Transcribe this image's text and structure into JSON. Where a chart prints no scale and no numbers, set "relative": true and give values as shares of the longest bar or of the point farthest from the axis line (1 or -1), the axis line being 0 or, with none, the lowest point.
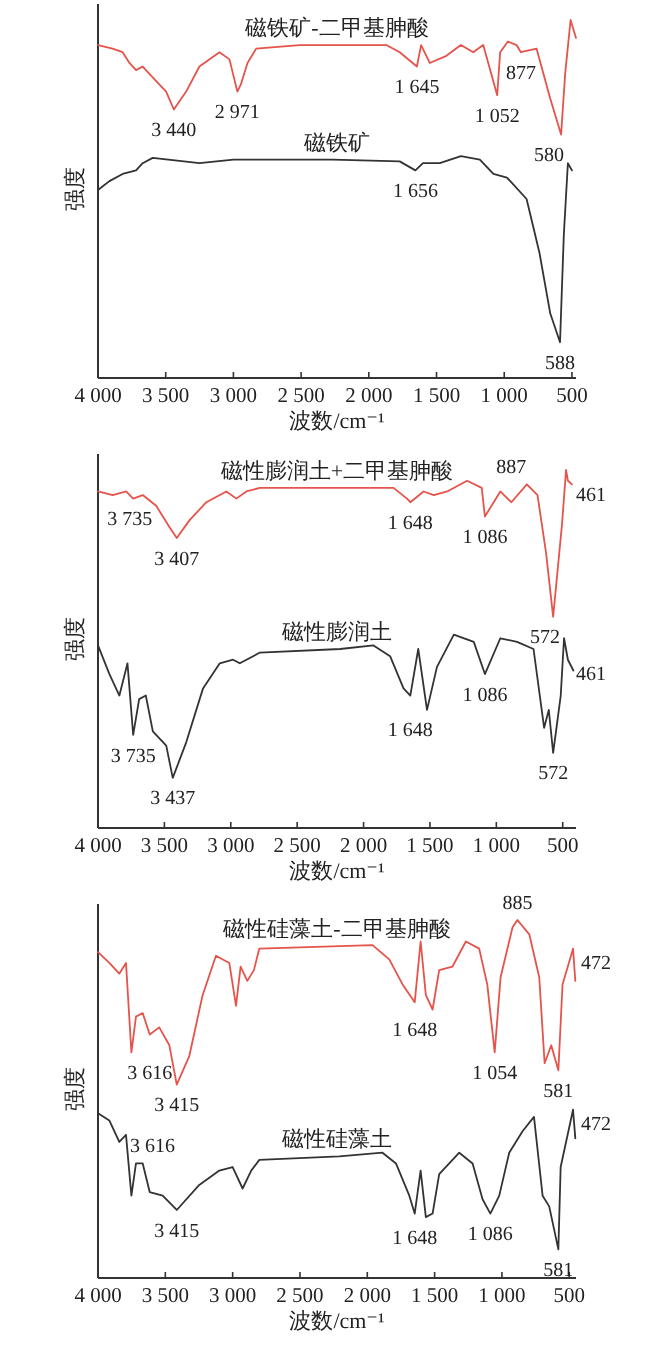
{
  "chart_data": [
    {
      "type": "line",
      "relative": true,
      "xlim": [
        4000,
        470
      ],
      "xlabel": "波数/cm⁻¹",
      "ylabel": "强度",
      "xticks": [
        {
          "value": 4000,
          "label": "4 000"
        },
        {
          "value": 3500,
          "label": "3 500"
        },
        {
          "value": 3000,
          "label": "3 000"
        },
        {
          "value": 2500,
          "label": "2 500"
        },
        {
          "value": 2000,
          "label": "2 000"
        },
        {
          "value": 1500,
          "label": "1 500"
        },
        {
          "value": 1000,
          "label": "1 000"
        },
        {
          "value": 500,
          "label": "500"
        }
      ],
      "series": [
        {
          "name": "磁铁矿-二甲基胂酸",
          "color": "#e5534b",
          "x": [
            4000,
            3892,
            3818,
            3768,
            3719,
            3670,
            3596,
            3497,
            3440,
            3349,
            3251,
            3103,
            3029,
            2971,
            2945,
            2896,
            2832,
            2511,
            2018,
            1870,
            1772,
            1645,
            1614,
            1550,
            1427,
            1320,
            1229,
            1155,
            1052,
            1030,
            973,
            909,
            877,
            761,
            660,
            580,
            550,
            510,
            470
          ],
          "values": [
            0.93,
            0.92,
            0.91,
            0.88,
            0.86,
            0.87,
            0.84,
            0.8,
            0.75,
            0.8,
            0.87,
            0.91,
            0.89,
            0.8,
            0.82,
            0.88,
            0.92,
            0.93,
            0.93,
            0.93,
            0.91,
            0.87,
            0.93,
            0.88,
            0.9,
            0.93,
            0.91,
            0.93,
            0.79,
            0.91,
            0.94,
            0.93,
            0.91,
            0.92,
            0.78,
            0.68,
            0.85,
            1.0,
            0.95
          ]
        },
        {
          "name": "磁铁矿",
          "color": "#333333",
          "x": [
            4000,
            3916,
            3818,
            3719,
            3670,
            3596,
            3251,
            3000,
            2758,
            2265,
            1772,
            1656,
            1600,
            1476,
            1320,
            1180,
            1080,
            980,
            835,
            740,
            660,
            588,
            560,
            530,
            500
          ],
          "values": [
            0.525,
            0.55,
            0.57,
            0.58,
            0.6,
            0.615,
            0.6,
            0.61,
            0.61,
            0.61,
            0.605,
            0.58,
            0.6,
            0.6,
            0.62,
            0.61,
            0.57,
            0.56,
            0.5,
            0.35,
            0.18,
            0.1,
            0.4,
            0.6,
            0.58
          ]
        }
      ],
      "annotations": [
        {
          "text": "3 440",
          "x": 3440,
          "y": 0.75
        },
        {
          "text": "2 971",
          "x": 2971,
          "y": 0.8
        },
        {
          "text": "1 645",
          "x": 1645,
          "y": 0.87
        },
        {
          "text": "1 052",
          "x": 1052,
          "y": 0.79
        },
        {
          "text": "877",
          "x": 877,
          "y": 0.91
        },
        {
          "text": "580",
          "x": 580,
          "y": 0.68
        },
        {
          "text": "1 656",
          "x": 1656,
          "y": 0.58
        },
        {
          "text": "588",
          "x": 588,
          "y": 0.1
        }
      ]
    },
    {
      "type": "line",
      "relative": true,
      "xlim": [
        4000,
        400
      ],
      "xlabel": "波数/cm⁻¹",
      "ylabel": "强度",
      "xticks": [
        {
          "value": 4000,
          "label": "4 000"
        },
        {
          "value": 3500,
          "label": "3 500"
        },
        {
          "value": 3000,
          "label": "3 000"
        },
        {
          "value": 2500,
          "label": "2 500"
        },
        {
          "value": 2000,
          "label": "2 000"
        },
        {
          "value": 1500,
          "label": "1 500"
        },
        {
          "value": 1000,
          "label": "1 000"
        },
        {
          "value": 500,
          "label": "500"
        }
      ],
      "series": [
        {
          "name": "磁性膨润土+二甲基胂酸",
          "color": "#e5534b",
          "x": [
            4000,
            3889,
            3788,
            3735,
            3663,
            3562,
            3461,
            3407,
            3310,
            3184,
            3033,
            2958,
            2882,
            2781,
            1774,
            1673,
            1648,
            1548,
            1470,
            1370,
            1220,
            1110,
            1086,
            970,
            887,
            770,
            690,
            626,
            572,
            505,
            475,
            461,
            430
          ],
          "values": [
            0.94,
            0.93,
            0.94,
            0.92,
            0.93,
            0.9,
            0.84,
            0.81,
            0.86,
            0.91,
            0.94,
            0.92,
            0.94,
            0.95,
            0.95,
            0.92,
            0.91,
            0.94,
            0.93,
            0.94,
            0.97,
            0.95,
            0.87,
            0.94,
            0.91,
            0.96,
            0.93,
            0.77,
            0.59,
            0.85,
            1.0,
            0.97,
            0.96
          ]
        },
        {
          "name": "磁性膨润土",
          "color": "#333333",
          "x": [
            4000,
            3914,
            3839,
            3778,
            3735,
            3690,
            3640,
            3587,
            3486,
            3437,
            3335,
            3209,
            3083,
            2983,
            2932,
            2781,
            2177,
            1925,
            1800,
            1699,
            1648,
            1588,
            1522,
            1447,
            1320,
            1170,
            1086,
            970,
            844,
            720,
            640,
            605,
            572,
            515,
            490,
            461,
            420
          ],
          "values": [
            0.51,
            0.43,
            0.37,
            0.46,
            0.26,
            0.36,
            0.37,
            0.27,
            0.23,
            0.14,
            0.24,
            0.39,
            0.46,
            0.47,
            0.46,
            0.49,
            0.5,
            0.51,
            0.48,
            0.39,
            0.37,
            0.5,
            0.33,
            0.45,
            0.54,
            0.52,
            0.43,
            0.53,
            0.52,
            0.5,
            0.28,
            0.33,
            0.21,
            0.37,
            0.53,
            0.47,
            0.44
          ]
        }
      ],
      "annotations": [
        {
          "text": "3 735",
          "x": 3735,
          "y": 0.92
        },
        {
          "text": "3 407",
          "x": 3407,
          "y": 0.81
        },
        {
          "text": "1 648",
          "x": 1648,
          "y": 0.91
        },
        {
          "text": "1 086",
          "x": 1086,
          "y": 0.87
        },
        {
          "text": "887",
          "x": 887,
          "y": 0.91
        },
        {
          "text": "461",
          "x": 461,
          "y": 0.97
        },
        {
          "text": "572",
          "x": 572,
          "y": 0.59
        },
        {
          "text": "3 735",
          "x": 3735,
          "y": 0.26
        },
        {
          "text": "3 437",
          "x": 3437,
          "y": 0.14
        },
        {
          "text": "1 648",
          "x": 1648,
          "y": 0.37
        },
        {
          "text": "1 086",
          "x": 1086,
          "y": 0.43
        },
        {
          "text": "572",
          "x": 572,
          "y": 0.21
        },
        {
          "text": "461",
          "x": 461,
          "y": 0.47
        }
      ]
    },
    {
      "type": "line",
      "relative": true,
      "xlim": [
        4000,
        450
      ],
      "xlabel": "波数/cm⁻¹",
      "ylabel": "强度",
      "xticks": [
        {
          "value": 4000,
          "label": "4 000"
        },
        {
          "value": 3500,
          "label": "3 500"
        },
        {
          "value": 3000,
          "label": "3 000"
        },
        {
          "value": 2500,
          "label": "2 500"
        },
        {
          "value": 2000,
          "label": "2 000"
        },
        {
          "value": 1500,
          "label": "1 500"
        },
        {
          "value": 1000,
          "label": "1 000"
        },
        {
          "value": 500,
          "label": "500"
        }
      ],
      "series": [
        {
          "name": "磁性硅藻土-二甲基胂酸",
          "color": "#e5534b",
          "x": [
            4000,
            3916,
            3842,
            3792,
            3752,
            3718,
            3668,
            3616,
            3545,
            3470,
            3415,
            3322,
            3223,
            3124,
            3025,
            2975,
            2941,
            2891,
            2842,
            2802,
            1961,
            1837,
            1738,
            1648,
            1604,
            1565,
            1515,
            1466,
            1367,
            1268,
            1169,
            1109,
            1054,
            1010,
            921,
            885,
            797,
            723,
            683,
            634,
            581,
            550,
            472,
            455
          ],
          "values": [
            0.91,
            0.88,
            0.85,
            0.88,
            0.63,
            0.73,
            0.74,
            0.68,
            0.7,
            0.65,
            0.54,
            0.62,
            0.79,
            0.9,
            0.88,
            0.76,
            0.87,
            0.83,
            0.86,
            0.92,
            0.93,
            0.89,
            0.82,
            0.77,
            0.94,
            0.79,
            0.75,
            0.86,
            0.87,
            0.94,
            0.92,
            0.82,
            0.63,
            0.84,
            0.98,
            1.0,
            0.96,
            0.84,
            0.6,
            0.65,
            0.58,
            0.82,
            0.92,
            0.83
          ]
        },
        {
          "name": "磁性硅藻土",
          "color": "#333333",
          "x": [
            4000,
            3916,
            3842,
            3792,
            3752,
            3718,
            3668,
            3616,
            3520,
            3415,
            3248,
            3099,
            3000,
            2926,
            2862,
            2802,
            2208,
            1887,
            1787,
            1688,
            1648,
            1604,
            1565,
            1515,
            1466,
            1317,
            1218,
            1144,
            1086,
            1020,
            946,
            847,
            762,
            698,
            649,
            581,
            564,
            472,
            455
          ],
          "values": [
            0.46,
            0.44,
            0.38,
            0.4,
            0.23,
            0.32,
            0.32,
            0.24,
            0.23,
            0.19,
            0.26,
            0.3,
            0.31,
            0.25,
            0.3,
            0.33,
            0.34,
            0.35,
            0.32,
            0.23,
            0.18,
            0.3,
            0.17,
            0.18,
            0.29,
            0.35,
            0.32,
            0.22,
            0.18,
            0.23,
            0.35,
            0.41,
            0.45,
            0.23,
            0.2,
            0.08,
            0.31,
            0.47,
            0.39
          ]
        }
      ],
      "annotations": [
        {
          "text": "3 616",
          "x": 3616,
          "y": 0.68
        },
        {
          "text": "3 415",
          "x": 3415,
          "y": 0.54
        },
        {
          "text": "1 648",
          "x": 1648,
          "y": 0.77
        },
        {
          "text": "1 054",
          "x": 1054,
          "y": 0.63
        },
        {
          "text": "885",
          "x": 885,
          "y": 1.0
        },
        {
          "text": "472",
          "x": 472,
          "y": 0.92
        },
        {
          "text": "581",
          "x": 581,
          "y": 0.58
        },
        {
          "text": "3 616",
          "x": 3616,
          "y": 0.24
        },
        {
          "text": "3 415",
          "x": 3415,
          "y": 0.19
        },
        {
          "text": "1 648",
          "x": 1648,
          "y": 0.18
        },
        {
          "text": "1 086",
          "x": 1086,
          "y": 0.18
        },
        {
          "text": "581",
          "x": 581,
          "y": 0.08
        },
        {
          "text": "472",
          "x": 472,
          "y": 0.47
        }
      ]
    }
  ]
}
